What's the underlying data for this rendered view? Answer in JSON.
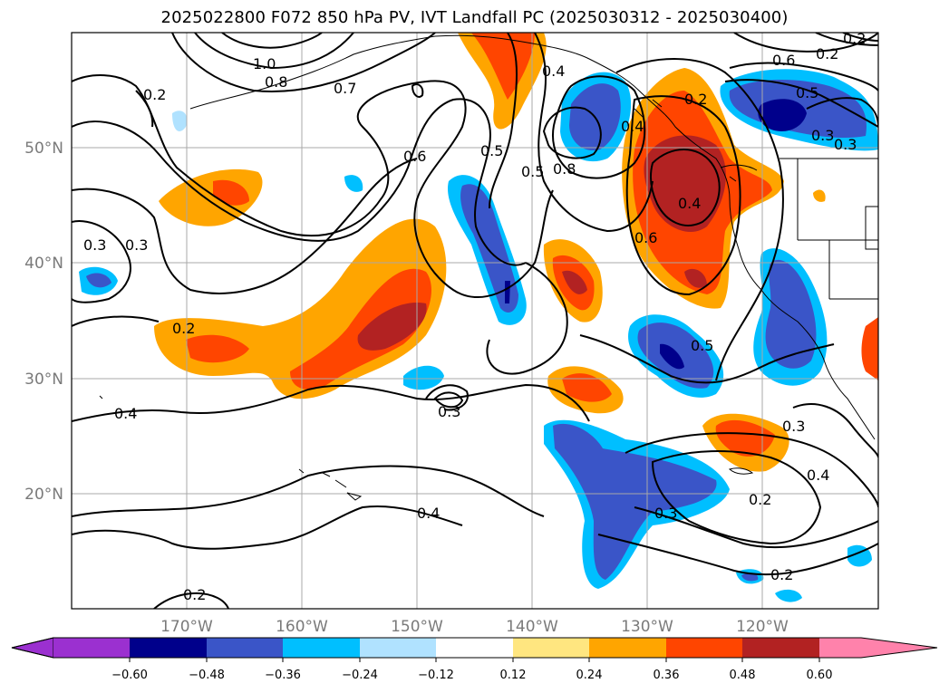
{
  "title": "2025022800 F072 850 hPa PV, IVT Landfall PC (2025030312 - 2025030400)",
  "lat_labels": [
    "50°N",
    "40°N",
    "30°N",
    "20°N"
  ],
  "lon_labels": [
    "170°W",
    "160°W",
    "150°W",
    "140°W",
    "130°W",
    "120°W"
  ],
  "contour_labels": [
    "1.0",
    "0.8",
    "0.7",
    "0.2",
    "0.6",
    "0.5",
    "0.4",
    "0.3",
    "0.2",
    "0.4",
    "0.4",
    "0.6",
    "0.8",
    "0.5",
    "0.2",
    "0.3",
    "0.5",
    "0.4",
    "0.3",
    "0.4",
    "0.3",
    "0.2",
    "0.2",
    "0.2",
    "0.3",
    "0.4",
    "0.6",
    "0.5",
    "0.3",
    "0.2",
    "0.2",
    "0.3"
  ],
  "colorbar": {
    "ticks": [
      "−0.60",
      "−0.48",
      "−0.36",
      "−0.24",
      "−0.12",
      "0.12",
      "0.24",
      "0.36",
      "0.48",
      "0.60"
    ],
    "colors": [
      "#9b30d0",
      "#00008b",
      "#3a55c8",
      "#00bfff",
      "#b0e2ff",
      "#ffffff",
      "#ffe680",
      "#ffa500",
      "#ff4500",
      "#b22222",
      "#ff82ab"
    ]
  }
}
